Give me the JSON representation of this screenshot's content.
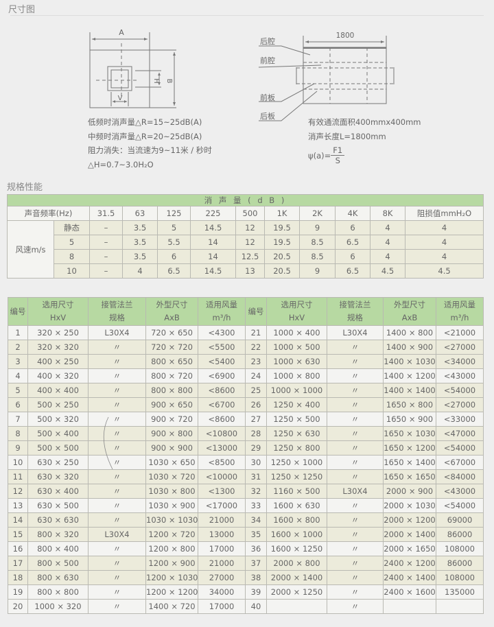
{
  "sections": {
    "dimension_title": "尺寸图",
    "spec_title": "规格性能"
  },
  "diagram_left": {
    "label_a": "A",
    "label_b": "B",
    "label_h": "H",
    "label_v": "V",
    "notes": [
      "低频时消声量△R=15~25dB(A)",
      "中频时消声量△R=20~25dB(A)",
      "阻力消失：当流速为9~11米 / 秒时",
      "△H=0.7~3.0H₂O"
    ]
  },
  "diagram_right": {
    "length_label": "1800",
    "parts": [
      "后腔",
      "前腔",
      "前板",
      "后板"
    ],
    "notes": [
      "有效通流面积400mmx400mm",
      "消声长度L=1800mm"
    ],
    "formula": {
      "lhs": "ψ(a)=",
      "numerator": "F1",
      "denominator": "S"
    }
  },
  "spec_table": {
    "title": "消 声 量 ( d B )",
    "freq_label": "声音频率(Hz)",
    "freqs": [
      "31.5",
      "63",
      "125",
      "225",
      "500",
      "1K",
      "2K",
      "4K",
      "8K",
      "阻损值mmH₂O"
    ],
    "speed_label": "风速m/s",
    "rows": [
      {
        "speed": "静态",
        "values": [
          "–",
          "3.5",
          "5",
          "14.5",
          "12",
          "19.5",
          "9",
          "6",
          "4",
          "4"
        ]
      },
      {
        "speed": "5",
        "values": [
          "–",
          "3.5",
          "5.5",
          "14",
          "12",
          "19.5",
          "8.5",
          "6.5",
          "4",
          "4"
        ]
      },
      {
        "speed": "8",
        "values": [
          "–",
          "3.5",
          "6",
          "14",
          "12.5",
          "20.5",
          "8.5",
          "6",
          "4",
          "4"
        ]
      },
      {
        "speed": "10",
        "values": [
          "–",
          "4",
          "6.5",
          "14.5",
          "13",
          "20.5",
          "9",
          "6.5",
          "4.5",
          "4.5"
        ]
      }
    ]
  },
  "size_table": {
    "headers": [
      [
        "编号"
      ],
      [
        "选用尺寸",
        "HxV"
      ],
      [
        "接管法兰",
        "规格"
      ],
      [
        "外型尺寸",
        "AxB"
      ],
      [
        "适用风量",
        "m³/h"
      ],
      [
        "编号"
      ],
      [
        "选用尺寸",
        "HxV"
      ],
      [
        "接管法兰",
        "规格"
      ],
      [
        "外型尺寸",
        "AxB"
      ],
      [
        "适用风量",
        "m³/h"
      ]
    ],
    "rows": [
      [
        "1",
        "320 × 250",
        "L30X4",
        "720 × 650",
        "<4300",
        "21",
        "1000 × 400",
        "L30X4",
        "1400 × 800",
        "<21000"
      ],
      [
        "2",
        "320 × 320",
        "〃",
        "720 × 720",
        "<5500",
        "22",
        "1000 × 500",
        "〃",
        "1400 × 900",
        "<27000"
      ],
      [
        "3",
        "400 × 250",
        "〃",
        "800 × 650",
        "<5400",
        "23",
        "1000 × 630",
        "〃",
        "1400 × 1030",
        "<34000"
      ],
      [
        "4",
        "400 × 320",
        "〃",
        "800 × 720",
        "<6900",
        "24",
        "1000 × 800",
        "〃",
        "1400 × 1200",
        "<43000"
      ],
      [
        "5",
        "400 × 400",
        "〃",
        "800 × 800",
        "<8600",
        "25",
        "1000 × 1000",
        "〃",
        "1400 × 1400",
        "<54000"
      ],
      [
        "6",
        "500 × 250",
        "〃",
        "900 × 650",
        "<6700",
        "26",
        "1250 × 400",
        "〃",
        "1650 × 800",
        "<27000"
      ],
      [
        "7",
        "500 × 320",
        "〃",
        "900 × 720",
        "<8600",
        "27",
        "1250 × 500",
        "〃",
        "1650 × 900",
        "<33000"
      ],
      [
        "8",
        "500 × 400",
        "〃",
        "900 × 800",
        "<10800",
        "28",
        "1250 × 630",
        "〃",
        "1650 × 1030",
        "<47000"
      ],
      [
        "9",
        "500 × 500",
        "〃",
        "900 × 900",
        "<13000",
        "29",
        "1250 × 800",
        "〃",
        "1650 × 1200",
        "<54000"
      ],
      [
        "10",
        "630 × 250",
        "〃",
        "1030 × 650",
        "<8500",
        "30",
        "1250 × 1000",
        "〃",
        "1650 × 1400",
        "<67000"
      ],
      [
        "11",
        "630 × 320",
        "〃",
        "1030 × 720",
        "<10000",
        "31",
        "1250 × 1250",
        "〃",
        "1650 × 1650",
        "<84000"
      ],
      [
        "12",
        "630 × 400",
        "〃",
        "1030 × 800",
        "<1300",
        "32",
        "1160 × 500",
        "L30X4",
        "2000 × 900",
        "<43000"
      ],
      [
        "13",
        "630 × 500",
        "〃",
        "1030 × 900",
        "<17000",
        "33",
        "1600 × 630",
        "〃",
        "2000 × 1030",
        "<54000"
      ],
      [
        "14",
        "630 × 630",
        "〃",
        "1030 × 1030",
        "21000",
        "34",
        "1600 × 800",
        "〃",
        "2000 × 1200",
        "69000"
      ],
      [
        "15",
        "800 × 320",
        "L30X4",
        "1200 × 720",
        "13000",
        "35",
        "1600 × 1000",
        "〃",
        "2000 × 1400",
        "86000"
      ],
      [
        "16",
        "800 × 400",
        "〃",
        "1200 × 800",
        "17000",
        "36",
        "1600 × 1250",
        "〃",
        "2000 × 1650",
        "108000"
      ],
      [
        "17",
        "800 × 500",
        "〃",
        "1200 × 900",
        "21000",
        "37",
        "2000 × 800",
        "〃",
        "2400 × 1200",
        "86000"
      ],
      [
        "18",
        "800 × 630",
        "〃",
        "1200 × 1030",
        "27000",
        "38",
        "2000 × 1400",
        "〃",
        "2400 × 1400",
        "108000"
      ],
      [
        "19",
        "800 × 800",
        "〃",
        "1200 × 1200",
        "34000",
        "39",
        "2000 × 1250",
        "〃",
        "2400 × 1600",
        "135000"
      ],
      [
        "20",
        "1000 × 320",
        "〃",
        "1400 × 720",
        "17000",
        "40",
        "",
        "〃",
        "",
        ""
      ]
    ]
  },
  "colors": {
    "header_green": "#b7d9a2",
    "row_beige": "#ecebdb",
    "row_white": "#f4f4f2",
    "background": "#eeeeee"
  }
}
